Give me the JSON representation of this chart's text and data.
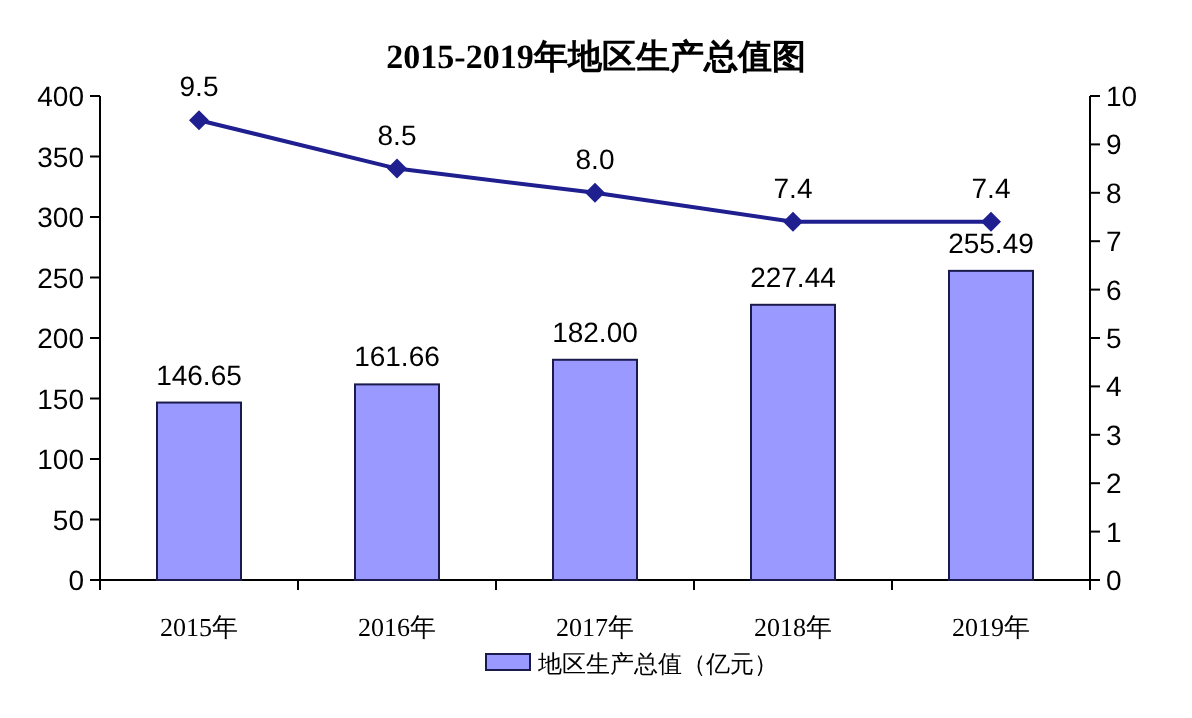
{
  "chart_data": {
    "type": "bar",
    "title": "2015-2019年地区生产总值图",
    "categories": [
      "2015年",
      "2016年",
      "2017年",
      "2018年",
      "2019年"
    ],
    "series": [
      {
        "name": "地区生产总值（亿元）",
        "color": "#9999ff",
        "values": [
          146.65,
          161.66,
          182.0,
          227.44,
          255.49
        ],
        "value_labels": [
          "146.65",
          "161.66",
          "182.00",
          "227.44",
          "255.49"
        ]
      },
      {
        "type": "line",
        "axis": "y2",
        "color": "#1f1f8f",
        "marker": "diamond",
        "values": [
          9.5,
          8.5,
          8.0,
          7.4,
          7.4
        ],
        "value_labels": [
          "9.5",
          "8.5",
          "8.0",
          "7.4",
          "7.4"
        ]
      }
    ],
    "ylim": [
      0,
      400
    ],
    "yticks": [
      0,
      50,
      100,
      150,
      200,
      250,
      300,
      350,
      400
    ],
    "y2lim": [
      0,
      10
    ],
    "y2ticks": [
      0,
      1,
      2,
      3,
      4,
      5,
      6,
      7,
      8,
      9,
      10
    ],
    "grid": false,
    "legend": "bottom"
  }
}
